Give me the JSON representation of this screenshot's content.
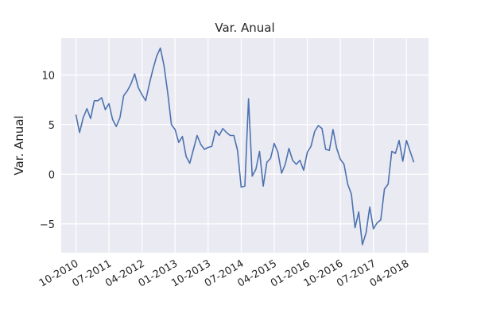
{
  "chart_data": {
    "type": "line",
    "title": "Var. Anual",
    "ylabel": "Var. Anual",
    "x": [
      "2010-10",
      "2010-11",
      "2010-12",
      "2011-01",
      "2011-02",
      "2011-03",
      "2011-04",
      "2011-05",
      "2011-06",
      "2011-07",
      "2011-08",
      "2011-09",
      "2011-10",
      "2011-11",
      "2011-12",
      "2012-01",
      "2012-02",
      "2012-03",
      "2012-04",
      "2012-05",
      "2012-06",
      "2012-07",
      "2012-08",
      "2012-09",
      "2012-10",
      "2012-11",
      "2012-12",
      "2013-01",
      "2013-02",
      "2013-03",
      "2013-04",
      "2013-05",
      "2013-06",
      "2013-07",
      "2013-08",
      "2013-09",
      "2013-10",
      "2013-11",
      "2013-12",
      "2014-01",
      "2014-02",
      "2014-03",
      "2014-04",
      "2014-05",
      "2014-06",
      "2014-07",
      "2014-08",
      "2014-09",
      "2014-10",
      "2014-11",
      "2014-12",
      "2015-01",
      "2015-02",
      "2015-03",
      "2015-04",
      "2015-05",
      "2015-06",
      "2015-07",
      "2015-08",
      "2015-09",
      "2015-10",
      "2015-11",
      "2015-12",
      "2016-01",
      "2016-02",
      "2016-03",
      "2016-04",
      "2016-05",
      "2016-06",
      "2016-07",
      "2016-08",
      "2016-09",
      "2016-10",
      "2016-11",
      "2016-12",
      "2017-01",
      "2017-02",
      "2017-03",
      "2017-04",
      "2017-05",
      "2017-06",
      "2017-07",
      "2017-08",
      "2017-09",
      "2017-10",
      "2017-11",
      "2017-12",
      "2018-01",
      "2018-02",
      "2018-03",
      "2018-04",
      "2018-05",
      "2018-06"
    ],
    "series": [
      {
        "name": "Var. Anual",
        "color": "#4c72b0",
        "values": [
          6.0,
          4.2,
          5.7,
          6.6,
          5.6,
          7.4,
          7.4,
          7.7,
          6.5,
          7.1,
          5.5,
          4.8,
          5.7,
          7.9,
          8.4,
          9.1,
          10.1,
          8.7,
          8.0,
          7.4,
          9.1,
          10.6,
          11.9,
          12.7,
          10.9,
          8.2,
          5.0,
          4.5,
          3.2,
          3.8,
          1.8,
          1.1,
          2.5,
          3.9,
          3.0,
          2.5,
          2.7,
          2.8,
          4.4,
          3.9,
          4.6,
          4.2,
          3.9,
          3.9,
          2.4,
          -1.3,
          -1.2,
          7.6,
          -0.2,
          0.5,
          2.3,
          -1.2,
          1.2,
          1.6,
          3.1,
          2.2,
          0.1,
          1.0,
          2.6,
          1.4,
          1.0,
          1.4,
          0.4,
          2.2,
          2.8,
          4.3,
          4.9,
          4.6,
          2.5,
          2.4,
          4.5,
          2.6,
          1.5,
          1.0,
          -1.0,
          -2.0,
          -5.4,
          -3.8,
          -7.1,
          -5.9,
          -3.3,
          -5.5,
          -4.9,
          -4.6,
          -1.5,
          -1.0,
          2.3,
          2.1,
          3.4,
          1.3,
          3.4,
          2.3,
          1.2
        ]
      }
    ],
    "xlim": [
      "2010-06",
      "2018-10"
    ],
    "xticks": [
      {
        "value": "2010-10",
        "label": "10-2010"
      },
      {
        "value": "2011-07",
        "label": "07-2011"
      },
      {
        "value": "2012-04",
        "label": "04-2012"
      },
      {
        "value": "2013-01",
        "label": "01-2013"
      },
      {
        "value": "2013-10",
        "label": "10-2013"
      },
      {
        "value": "2014-07",
        "label": "07-2014"
      },
      {
        "value": "2015-04",
        "label": "04-2015"
      },
      {
        "value": "2016-01",
        "label": "01-2016"
      },
      {
        "value": "2016-10",
        "label": "10-2016"
      },
      {
        "value": "2017-07",
        "label": "07-2017"
      },
      {
        "value": "2018-04",
        "label": "04-2018"
      }
    ],
    "ylim": [
      -7.9,
      13.7
    ],
    "yticks": [
      {
        "value": -5,
        "label": "−5"
      },
      0,
      5,
      10
    ],
    "grid": true
  }
}
